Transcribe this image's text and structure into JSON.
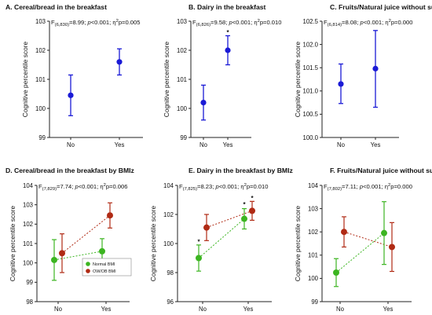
{
  "chart_data": [
    {
      "id": "A",
      "type": "scatter",
      "title": "A. Cereal/bread in the breakfast",
      "stat": {
        "pre": "F",
        "sub": "(6,830)",
        "main": "=8.99; ",
        "p": "p",
        "mid": "<0.001; η",
        "sup": "2",
        "post": "p=0.005"
      },
      "ylabel": "Cognitive percentile score",
      "categories": [
        "No",
        "Yes"
      ],
      "ylim": [
        99,
        103
      ],
      "yticks": [
        "99",
        "100",
        "101",
        "102",
        "103"
      ],
      "series": [
        {
          "color": "#1a1ad6",
          "points": [
            {
              "y": 100.45,
              "lo": 99.75,
              "hi": 101.15
            },
            {
              "y": 101.6,
              "lo": 101.15,
              "hi": 102.05
            }
          ]
        }
      ]
    },
    {
      "id": "B",
      "type": "scatter",
      "title": "B. Dairy in the breakfast",
      "stat": {
        "pre": "F",
        "sub": "(6,826)",
        "main": "=9.58; ",
        "p": "p",
        "mid": "<0.001; η",
        "sup": "2",
        "post": "p=0.010"
      },
      "ylabel": "Cognitive percentile score",
      "categories": [
        "No",
        "Yes"
      ],
      "ylim": [
        99,
        103
      ],
      "yticks": [
        "99",
        "100",
        "101",
        "102",
        "103"
      ],
      "series": [
        {
          "color": "#1a1ad6",
          "points": [
            {
              "y": 100.2,
              "lo": 99.6,
              "hi": 100.8
            },
            {
              "y": 102.0,
              "lo": 101.5,
              "hi": 102.5
            }
          ]
        }
      ],
      "annotations": [
        {
          "text": "*",
          "cat": 1,
          "y": 102.65
        }
      ]
    },
    {
      "id": "C",
      "type": "scatter",
      "title": "C. Fruits/Natural juice without sugar",
      "stat": {
        "pre": "F",
        "sub": "(6,814)",
        "main": "=8.08; ",
        "p": "p",
        "mid": "<0.001; η",
        "sup": "2",
        "post": "p=0.000"
      },
      "ylabel": "Cognitive percentile score",
      "categories": [
        "No",
        "Yes"
      ],
      "ylim": [
        100.0,
        102.5
      ],
      "yticks": [
        "100.0",
        "100.5",
        "101.0",
        "101.5",
        "102.0",
        "102.5"
      ],
      "series": [
        {
          "color": "#1a1ad6",
          "points": [
            {
              "y": 101.15,
              "lo": 100.73,
              "hi": 101.58
            },
            {
              "y": 101.48,
              "lo": 100.65,
              "hi": 102.3
            }
          ]
        }
      ]
    },
    {
      "id": "D",
      "type": "scatter",
      "title": "D. Cereal/bread in the breakfast by BMIz",
      "stat": {
        "pre": "F",
        "sub": "(7,829)",
        "main": "=7.74; ",
        "p": "p",
        "mid": "<0.001; η",
        "sup": "2",
        "post": "p=0.006"
      },
      "ylabel": "Cognitive percentile score",
      "categories": [
        "No",
        "Yes"
      ],
      "ylim": [
        98,
        104
      ],
      "yticks": [
        "98",
        "99",
        "100",
        "101",
        "102",
        "103",
        "104"
      ],
      "legend": [
        {
          "label": "Normal BMI",
          "color": "#3cb521"
        },
        {
          "label": "OW/OB BMI",
          "color": "#b02a14"
        }
      ],
      "series": [
        {
          "name": "Normal BMI",
          "color": "#3cb521",
          "points": [
            {
              "y": 100.15,
              "lo": 99.1,
              "hi": 101.2
            },
            {
              "y": 100.6,
              "lo": 99.95,
              "hi": 101.25
            }
          ]
        },
        {
          "name": "OW/OB BMI",
          "color": "#b02a14",
          "points": [
            {
              "y": 100.5,
              "lo": 99.5,
              "hi": 101.5
            },
            {
              "y": 102.45,
              "lo": 101.8,
              "hi": 103.1
            }
          ]
        }
      ]
    },
    {
      "id": "E",
      "type": "scatter",
      "title": "E. Dairy in the breakfast by BMIz",
      "stat": {
        "pre": "F",
        "sub": "(7,825)",
        "main": "=8.23; ",
        "p": "p",
        "mid": "<0.001; η",
        "sup": "2",
        "post": "p=0.010"
      },
      "ylabel": "Cognitive percentile score",
      "categories": [
        "No",
        "Yes"
      ],
      "ylim": [
        96,
        104
      ],
      "yticks": [
        "96",
        "98",
        "100",
        "102",
        "104"
      ],
      "series": [
        {
          "name": "Normal BMI",
          "color": "#3cb521",
          "points": [
            {
              "y": 99.0,
              "lo": 98.1,
              "hi": 99.9
            },
            {
              "y": 101.7,
              "lo": 101.0,
              "hi": 102.4
            }
          ]
        },
        {
          "name": "OW/OB BMI",
          "color": "#b02a14",
          "points": [
            {
              "y": 101.1,
              "lo": 100.2,
              "hi": 102.0
            },
            {
              "y": 102.25,
              "lo": 101.6,
              "hi": 102.9
            }
          ]
        }
      ],
      "annotations": [
        {
          "text": "*",
          "cat": 0,
          "y": 100.2
        },
        {
          "text": "*",
          "cat": 1,
          "y": 102.75
        },
        {
          "text": "*",
          "cat": 1.2,
          "y": 103.2
        }
      ]
    },
    {
      "id": "F",
      "type": "scatter",
      "title": "F. Fruits/Natural juice without sugar by BMIz",
      "stat": {
        "pre": "F",
        "sub": "(7,802)",
        "main": "=7.11; ",
        "p": "p",
        "mid": "<0.001; η",
        "sup": "2",
        "post": "p=0.000"
      },
      "ylabel": "Cognitive percentile score",
      "categories": [
        "No",
        "Yes"
      ],
      "ylim": [
        99,
        104
      ],
      "yticks": [
        "99",
        "100",
        "101",
        "102",
        "103",
        "104"
      ],
      "series": [
        {
          "name": "Normal BMI",
          "color": "#3cb521",
          "points": [
            {
              "y": 100.25,
              "lo": 99.65,
              "hi": 100.85
            },
            {
              "y": 101.95,
              "lo": 100.6,
              "hi": 103.3
            }
          ]
        },
        {
          "name": "OW/OB BMI",
          "color": "#b02a14",
          "points": [
            {
              "y": 102.0,
              "lo": 101.35,
              "hi": 102.65
            },
            {
              "y": 101.35,
              "lo": 100.3,
              "hi": 102.4
            }
          ]
        }
      ]
    }
  ]
}
